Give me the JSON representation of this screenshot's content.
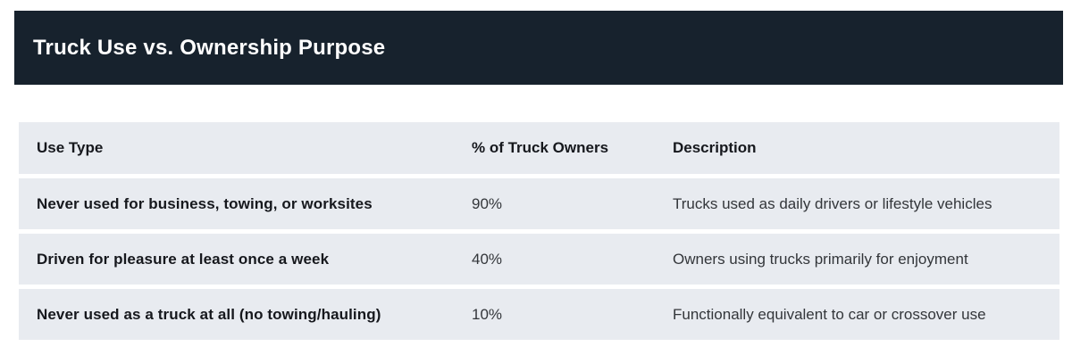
{
  "header": {
    "title": "Truck Use vs. Ownership Purpose"
  },
  "table": {
    "columns": [
      "Use Type",
      "% of Truck Owners",
      "Description"
    ],
    "rows": [
      {
        "use_type": "Never used for business, towing, or worksites",
        "percent": "90%",
        "description": "Trucks used as daily drivers or lifestyle vehicles"
      },
      {
        "use_type": "Driven for pleasure at least once a week",
        "percent": "40%",
        "description": "Owners using trucks primarily for enjoyment"
      },
      {
        "use_type": "Never used as a truck at all (no towing/hauling)",
        "percent": "10%",
        "description": "Functionally equivalent to car or crossover use"
      }
    ]
  },
  "colors": {
    "title_bar_bg": "#17222d",
    "title_text": "#ffffff",
    "row_bg": "#e8ebf0",
    "heading_text": "#16181d",
    "body_text": "#33363a",
    "page_bg": "#ffffff"
  },
  "chart_data": {
    "type": "table",
    "title": "Truck Use vs. Ownership Purpose",
    "columns": [
      "Use Type",
      "% of Truck Owners",
      "Description"
    ],
    "rows": [
      [
        "Never used for business, towing, or worksites",
        "90%",
        "Trucks used as daily drivers or lifestyle vehicles"
      ],
      [
        "Driven for pleasure at least once a week",
        "40%",
        "Owners using trucks primarily for enjoyment"
      ],
      [
        "Never used as a truck at all (no towing/hauling)",
        "10%",
        "Functionally equivalent to car or crossover use"
      ]
    ],
    "percent_values": [
      90,
      40,
      10
    ]
  }
}
